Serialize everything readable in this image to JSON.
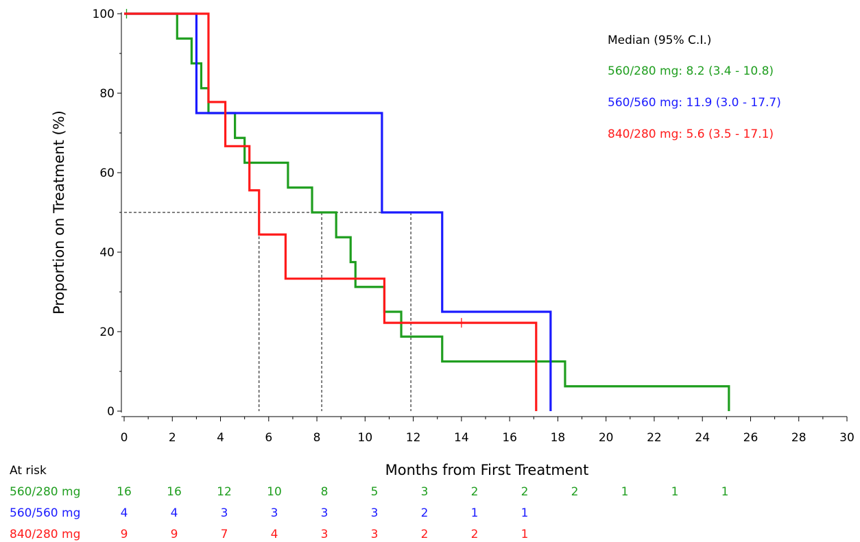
{
  "chart_data": {
    "type": "line",
    "subtype": "kaplan-meier step",
    "title": "",
    "xlabel": "Months from First Treatment",
    "ylabel": "Proportion on Treatment (%)",
    "xlim": [
      0,
      30
    ],
    "ylim": [
      0,
      100
    ],
    "x_ticks": [
      0,
      2,
      4,
      6,
      8,
      10,
      12,
      14,
      16,
      18,
      20,
      22,
      24,
      26,
      28,
      30
    ],
    "y_ticks": [
      0,
      20,
      40,
      60,
      80,
      100
    ],
    "grid": false,
    "legend_placement": "top-right",
    "legend_title": "Median (95% C.I.)",
    "median_reference": {
      "y": 50,
      "x_values": [
        5.6,
        8.2,
        11.9
      ]
    },
    "series": [
      {
        "name": "560/280 mg",
        "legend_text": "560/280 mg: 8.2 (3.4 - 10.8)",
        "color": "#1f9e1f",
        "steps": [
          [
            0,
            100
          ],
          [
            2.2,
            93.75
          ],
          [
            2.8,
            87.5
          ],
          [
            3.2,
            81.25
          ],
          [
            3.5,
            75
          ],
          [
            4.6,
            68.75
          ],
          [
            5.0,
            62.5
          ],
          [
            6.8,
            56.25
          ],
          [
            7.8,
            50
          ],
          [
            8.8,
            43.75
          ],
          [
            9.4,
            37.5
          ],
          [
            9.6,
            31.25
          ],
          [
            10.8,
            25
          ],
          [
            11.5,
            18.75
          ],
          [
            13.2,
            12.5
          ],
          [
            18.3,
            6.25
          ],
          [
            25.1,
            0
          ]
        ],
        "end_x": 25.1,
        "censor": [
          [
            0.1,
            100
          ]
        ]
      },
      {
        "name": "560/560 mg",
        "legend_text": "560/560 mg: 11.9 (3.0 - 17.7)",
        "color": "#1a1aff",
        "steps": [
          [
            0,
            100
          ],
          [
            3.0,
            75
          ],
          [
            10.7,
            50
          ],
          [
            13.2,
            25
          ],
          [
            17.7,
            0
          ]
        ],
        "end_x": 17.7,
        "censor": []
      },
      {
        "name": "840/280 mg",
        "legend_text": "840/280 mg: 5.6 (3.5 - 17.1)",
        "color": "#ff1a1a",
        "steps": [
          [
            0,
            100
          ],
          [
            3.5,
            77.78
          ],
          [
            4.2,
            66.67
          ],
          [
            5.2,
            55.56
          ],
          [
            5.6,
            44.44
          ],
          [
            6.7,
            33.33
          ],
          [
            10.8,
            22.22
          ],
          [
            17.1,
            0
          ]
        ],
        "end_x": 17.1,
        "censor": [
          [
            14.0,
            22.22
          ]
        ]
      }
    ],
    "at_risk": {
      "label": "At risk",
      "times": [
        0,
        2,
        4,
        6,
        8,
        10,
        12,
        14,
        16,
        18,
        20,
        22,
        24
      ],
      "rows": [
        {
          "name": "560/280 mg",
          "color": "#1f9e1f",
          "values": [
            "16",
            "16",
            "12",
            "10",
            "8",
            "5",
            "3",
            "2",
            "2",
            "2",
            "1",
            "1",
            "1"
          ]
        },
        {
          "name": "560/560 mg",
          "color": "#1a1aff",
          "values": [
            "4",
            "4",
            "3",
            "3",
            "3",
            "3",
            "2",
            "1",
            "1"
          ]
        },
        {
          "name": "840/280 mg",
          "color": "#ff1a1a",
          "values": [
            "9",
            "9",
            "7",
            "4",
            "3",
            "3",
            "2",
            "2",
            "1"
          ]
        }
      ]
    }
  }
}
